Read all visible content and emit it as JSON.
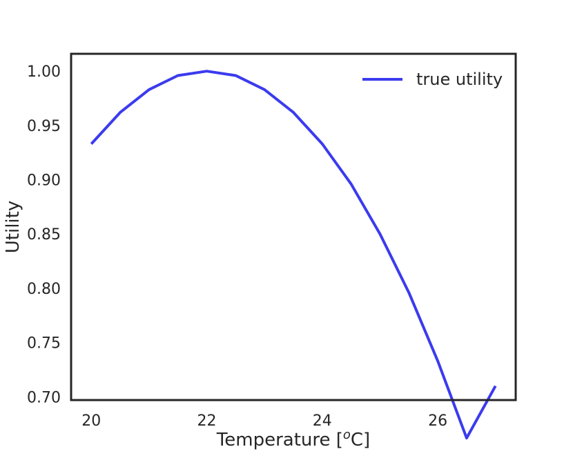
{
  "chart_data": {
    "type": "line",
    "title": "",
    "xlabel": "Temperature [",
    "xlabel_sup": "o",
    "xlabel_suffix": "C]",
    "ylabel": "Utility",
    "xlim": [
      19.65,
      27.35
    ],
    "ylim": [
      0.697,
      1.016
    ],
    "x_ticks": [
      20,
      22,
      24,
      26
    ],
    "x_tick_labels": [
      "20",
      "22",
      "24",
      "26"
    ],
    "y_ticks": [
      0.7,
      0.75,
      0.8,
      0.85,
      0.9,
      0.95,
      1.0
    ],
    "y_tick_labels": [
      "0.70",
      "0.75",
      "0.80",
      "0.85",
      "0.90",
      "0.95",
      "1.00"
    ],
    "grid": false,
    "legend_position": "top-right",
    "series": [
      {
        "name": "true utility",
        "color": "#3b3bef",
        "x": [
          20.0,
          20.5,
          21.0,
          21.5,
          22.0,
          22.5,
          23.0,
          23.5,
          24.0,
          24.5,
          25.0,
          25.5,
          26.0,
          26.5,
          27.0
        ],
        "y": [
          0.933,
          0.962,
          0.983,
          0.996,
          1.0,
          0.996,
          0.983,
          0.962,
          0.933,
          0.896,
          0.85,
          0.796,
          0.733,
          0.662,
          0.71
        ]
      }
    ]
  }
}
